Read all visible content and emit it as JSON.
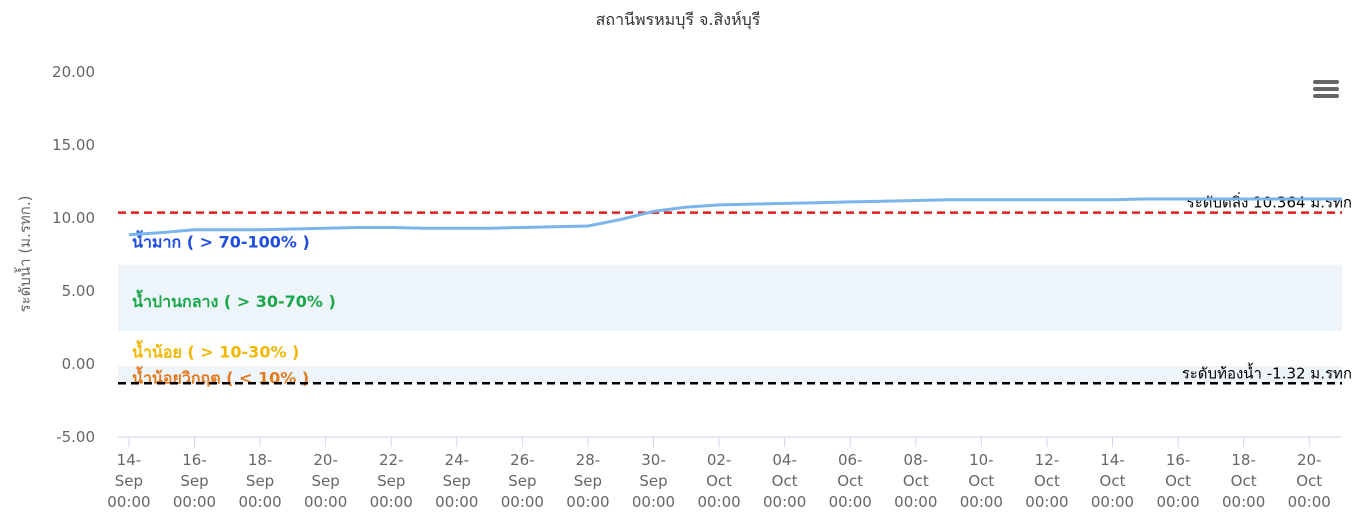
{
  "chart_data": {
    "type": "line",
    "title": "สถานีพรหมบุรี จ.สิงห์บุรี",
    "y_axis_label": "ระดับน้ำ (ม.รทก.)",
    "ylim": [
      -5,
      20
    ],
    "yticks": [
      {
        "value": -5,
        "label": "-5.00"
      },
      {
        "value": 0,
        "label": "0.00"
      },
      {
        "value": 5,
        "label": "5.00"
      },
      {
        "value": 10,
        "label": "10.00"
      },
      {
        "value": 15,
        "label": "15.00"
      },
      {
        "value": 20,
        "label": "20.00"
      }
    ],
    "xlim": [
      "13-Sep 16:00",
      "21-Oct 00:00"
    ],
    "xticks": [
      "14-Sep 00:00",
      "16-Sep 00:00",
      "18-Sep 00:00",
      "20-Sep 00:00",
      "22-Sep 00:00",
      "24-Sep 00:00",
      "26-Sep 00:00",
      "28-Sep 00:00",
      "30-Sep 00:00",
      "02-Oct 00:00",
      "04-Oct 00:00",
      "06-Oct 00:00",
      "08-Oct 00:00",
      "10-Oct 00:00",
      "12-Oct 00:00",
      "14-Oct 00:00",
      "16-Oct 00:00",
      "18-Oct 00:00",
      "20-Oct 00:00"
    ],
    "grid": false,
    "series": [
      {
        "name": "ระดับน้ำ",
        "color": "#7cb5ec",
        "x": [
          "14-Sep 00:00",
          "15-Sep 00:00",
          "16-Sep 00:00",
          "17-Sep 00:00",
          "18-Sep 00:00",
          "19-Sep 00:00",
          "20-Sep 00:00",
          "21-Sep 00:00",
          "22-Sep 00:00",
          "23-Sep 00:00",
          "24-Sep 00:00",
          "25-Sep 00:00",
          "26-Sep 00:00",
          "27-Sep 00:00",
          "28-Sep 00:00",
          "29-Sep 00:00",
          "30-Sep 00:00",
          "01-Oct 00:00",
          "02-Oct 00:00",
          "03-Oct 00:00",
          "04-Oct 00:00",
          "05-Oct 00:00",
          "06-Oct 00:00",
          "07-Oct 00:00",
          "08-Oct 00:00",
          "09-Oct 00:00",
          "10-Oct 00:00",
          "11-Oct 00:00",
          "12-Oct 00:00",
          "13-Oct 00:00",
          "14-Oct 00:00",
          "15-Oct 00:00",
          "16-Oct 00:00",
          "17-Oct 00:00",
          "18-Oct 00:00",
          "19-Oct 00:00",
          "20-Oct 00:00",
          "21-Oct 00:00"
        ],
        "values": [
          8.85,
          9.0,
          9.2,
          9.2,
          9.2,
          9.25,
          9.3,
          9.35,
          9.35,
          9.3,
          9.3,
          9.3,
          9.35,
          9.4,
          9.45,
          9.9,
          10.45,
          10.75,
          10.9,
          10.95,
          11.0,
          11.05,
          11.1,
          11.15,
          11.2,
          11.25,
          11.25,
          11.25,
          11.25,
          11.25,
          11.25,
          11.3,
          11.3,
          11.3,
          11.3,
          11.3,
          11.3,
          11.3
        ]
      }
    ],
    "bands": [
      {
        "from": 6.8,
        "to": 10.364,
        "color": "#ffffff",
        "label": "น้ำมาก ( > 70-100% )",
        "label_color": "#1f4fe0"
      },
      {
        "from": 2.26,
        "to": 6.8,
        "color": "#edf5fb",
        "label": "น้ำปานกลาง ( > 30-70% )",
        "label_color": "#1aa84a"
      },
      {
        "from": -0.14,
        "to": 2.26,
        "color": "#ffffff",
        "label": "น้ำน้อย ( > 10-30% )",
        "label_color": "#f2b705"
      },
      {
        "from": -1.32,
        "to": -0.14,
        "color": "#edf5fb",
        "label": "น้ำน้อยวิกฤต ( < 10% )",
        "label_color": "#e07b20"
      }
    ],
    "reference_lines": [
      {
        "value": 10.364,
        "color": "#e02020",
        "label": "ระดับตลิ่ง 10.364 ม.รทก"
      },
      {
        "value": -1.32,
        "color": "#000000",
        "label": "ระดับท้องน้ำ -1.32 ม.รทก"
      }
    ]
  }
}
